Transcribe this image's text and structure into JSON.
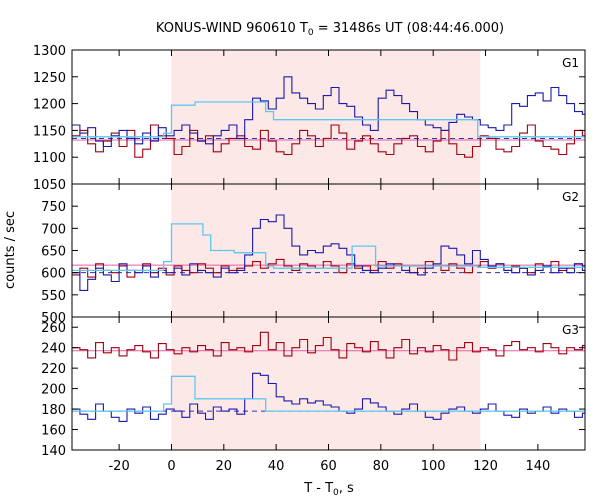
{
  "chart_data": {
    "type": "line",
    "title": "KONUS-WIND 960610 T",
    "title_sub": "0",
    "title_rest": " = 31486s UT (08:44:46.000)",
    "xlabel": "T - T",
    "xlabel_sub": "0",
    "xlabel_rest": ", s",
    "ylabel": "counts / sec",
    "xlim": [
      -38,
      158
    ],
    "xticks": [
      -20,
      0,
      20,
      40,
      60,
      80,
      100,
      120,
      140
    ],
    "xtick_labels": [
      "-20",
      "0",
      "20",
      "40",
      "60",
      "80",
      "100",
      "120",
      "140"
    ],
    "shaded_interval": [
      0,
      118
    ],
    "colors": {
      "shade": "#fde8e8",
      "blue_series": "#1a1aa8",
      "red_series": "#a00010",
      "fit": "#5bc8f0",
      "background_level": "#3030b0",
      "red_level": "#e060a0"
    },
    "bin_width": 3,
    "panels": [
      {
        "label": "G1",
        "ylim": [
          1050,
          1300
        ],
        "yticks": [
          1050,
          1100,
          1150,
          1200,
          1250,
          1300
        ],
        "ytick_labels": [
          "1050",
          "1100",
          "1150",
          "1200",
          "1250",
          "1300"
        ],
        "background_level": 1135,
        "red_level": 1132,
        "blue_y": [
          1160,
          1145,
          1155,
          1130,
          1120,
          1140,
          1150,
          1135,
          1125,
          1145,
          1130,
          1155,
          1140,
          1150,
          1160,
          1145,
          1130,
          1125,
          1140,
          1150,
          1160,
          1135,
          1170,
          1210,
          1205,
          1190,
          1210,
          1250,
          1220,
          1210,
          1200,
          1190,
          1215,
          1230,
          1200,
          1195,
          1175,
          1160,
          1150,
          1210,
          1225,
          1215,
          1200,
          1185,
          1170,
          1160,
          1155,
          1150,
          1165,
          1180,
          1175,
          1170,
          1160,
          1155,
          1150,
          1160,
          1200,
          1195,
          1215,
          1220,
          1205,
          1230,
          1215,
          1200,
          1185,
          1180,
          1160,
          1150,
          1165,
          1155,
          1160,
          1150,
          1155,
          1140,
          1150,
          1145,
          1135,
          1140,
          1160,
          1145,
          1150,
          1130,
          1160,
          1140,
          1150,
          1155,
          1145,
          1130,
          1150,
          1140,
          1155,
          1145,
          1150,
          1130,
          1160,
          1150,
          1140,
          1155,
          1150,
          1145,
          1130,
          1140,
          1150
        ],
        "red_y": [
          1140,
          1150,
          1125,
          1110,
          1130,
          1145,
          1120,
          1150,
          1100,
          1115,
          1160,
          1140,
          1135,
          1105,
          1120,
          1150,
          1130,
          1140,
          1110,
          1125,
          1135,
          1140,
          1120,
          1115,
          1150,
          1130,
          1110,
          1105,
          1125,
          1150,
          1140,
          1120,
          1135,
          1160,
          1145,
          1115,
          1130,
          1140,
          1125,
          1110,
          1105,
          1125,
          1135,
          1140,
          1120,
          1110,
          1130,
          1150,
          1125,
          1105,
          1100,
          1120,
          1140,
          1135,
          1115,
          1110,
          1120,
          1145,
          1160,
          1130,
          1120,
          1115,
          1105,
          1125,
          1150,
          1140,
          1130,
          1115,
          1125,
          1140,
          1135,
          1120,
          1110,
          1105,
          1125,
          1130,
          1150,
          1140,
          1115,
          1130,
          1155,
          1140,
          1120,
          1135,
          1145,
          1130,
          1150,
          1140,
          1135,
          1120,
          1130,
          1150,
          1145,
          1125,
          1135,
          1140,
          1130,
          1145,
          1120,
          1135,
          1150,
          1140,
          1130,
          1125,
          1150
        ],
        "fit_steps": [
          [
            -38,
            -3,
            1138
          ],
          [
            -3,
            0,
            1145
          ],
          [
            0,
            9,
            1197
          ],
          [
            9,
            36,
            1203
          ],
          [
            36,
            39,
            1185
          ],
          [
            39,
            117,
            1170
          ],
          [
            117,
            158,
            1138
          ]
        ]
      },
      {
        "label": "G2",
        "ylim": [
          500,
          800
        ],
        "yticks": [
          500,
          550,
          600,
          650,
          700,
          750
        ],
        "ytick_labels": [
          "500",
          "550",
          "600",
          "650",
          "700",
          "750"
        ],
        "background_level": 600,
        "red_level": 617,
        "blue_y": [
          600,
          560,
          585,
          610,
          595,
          580,
          620,
          605,
          600,
          615,
          590,
          605,
          600,
          610,
          595,
          620,
          605,
          600,
          590,
          610,
          600,
          605,
          640,
          700,
          720,
          715,
          730,
          700,
          660,
          640,
          650,
          645,
          660,
          665,
          655,
          640,
          615,
          605,
          600,
          610,
          620,
          615,
          605,
          600,
          595,
          610,
          620,
          660,
          655,
          640,
          620,
          650,
          630,
          615,
          620,
          605,
          600,
          610,
          595,
          605,
          615,
          600,
          610,
          600,
          620,
          605,
          600,
          595,
          610,
          605,
          600,
          615,
          600,
          610,
          605,
          595,
          610,
          600,
          605,
          615,
          600,
          610,
          605,
          600,
          615,
          600,
          605,
          595,
          610,
          600,
          605,
          600,
          615,
          610,
          600,
          605,
          600,
          610,
          605,
          600,
          595,
          610,
          600
        ],
        "red_y": [
          595,
          610,
          590,
          620,
          605,
          600,
          615,
          590,
          605,
          620,
          600,
          610,
          595,
          615,
          605,
          600,
          620,
          610,
          600,
          615,
          605,
          610,
          615,
          625,
          610,
          620,
          630,
          615,
          605,
          620,
          615,
          610,
          625,
          615,
          600,
          620,
          610,
          615,
          605,
          625,
          610,
          620,
          615,
          600,
          610,
          625,
          615,
          605,
          620,
          610,
          600,
          615,
          625,
          610,
          620,
          605,
          615,
          610,
          600,
          620,
          615,
          625,
          605,
          610,
          620,
          615,
          600,
          610,
          625,
          615,
          605,
          620,
          610,
          615,
          600,
          620,
          610,
          625,
          615,
          605,
          620,
          610,
          615,
          605,
          620,
          600,
          610,
          615,
          605,
          620,
          625,
          610,
          600,
          615,
          620,
          610,
          605,
          615,
          620,
          610,
          625
        ],
        "fit_steps": [
          [
            -38,
            -3,
            605
          ],
          [
            -3,
            0,
            625
          ],
          [
            0,
            9,
            710
          ],
          [
            9,
            12,
            710
          ],
          [
            12,
            15,
            685
          ],
          [
            15,
            24,
            650
          ],
          [
            24,
            36,
            645
          ],
          [
            36,
            39,
            615
          ],
          [
            39,
            69,
            610
          ],
          [
            69,
            78,
            660
          ],
          [
            78,
            117,
            615
          ],
          [
            117,
            158,
            612
          ]
        ]
      },
      {
        "label": "G3",
        "ylim": [
          140,
          270
        ],
        "yticks": [
          140,
          160,
          180,
          200,
          220,
          240,
          260
        ],
        "ytick_labels": [
          "140",
          "160",
          "180",
          "200",
          "220",
          "240",
          "260"
        ],
        "background_level": 178,
        "red_level": 237,
        "blue_y": [
          180,
          175,
          170,
          185,
          178,
          172,
          168,
          180,
          176,
          182,
          170,
          175,
          180,
          178,
          172,
          185,
          176,
          170,
          182,
          178,
          180,
          175,
          190,
          215,
          213,
          205,
          192,
          188,
          185,
          190,
          186,
          188,
          184,
          182,
          178,
          176,
          180,
          190,
          186,
          182,
          178,
          175,
          180,
          185,
          178,
          172,
          170,
          176,
          180,
          182,
          178,
          176,
          180,
          185,
          178,
          174,
          172,
          180,
          176,
          178,
          182,
          176,
          180,
          178,
          172,
          176,
          180,
          175,
          172,
          178,
          176,
          180,
          182,
          176,
          178,
          180,
          175,
          178,
          182,
          176,
          174,
          180,
          178,
          176,
          182,
          178,
          175,
          180,
          178,
          176,
          180,
          182,
          178,
          175,
          180,
          176,
          178,
          182,
          180,
          176,
          178,
          175,
          180
        ],
        "red_y": [
          240,
          238,
          230,
          245,
          235,
          240,
          232,
          238,
          242,
          236,
          230,
          244,
          238,
          234,
          240,
          236,
          242,
          238,
          232,
          245,
          238,
          240,
          236,
          242,
          255,
          238,
          245,
          232,
          240,
          248,
          235,
          242,
          250,
          238,
          230,
          244,
          240,
          236,
          246,
          238,
          230,
          240,
          248,
          234,
          240,
          236,
          242,
          238,
          228,
          240,
          245,
          236,
          240,
          238,
          232,
          242,
          246,
          238,
          240,
          236,
          244,
          240,
          234,
          240,
          238,
          242,
          236,
          240,
          232,
          244,
          238,
          240,
          236,
          242,
          238,
          228,
          240,
          244,
          236,
          240,
          242,
          238,
          234,
          240,
          236,
          244,
          240,
          238,
          236,
          242,
          240,
          238,
          236,
          244,
          240,
          238,
          236,
          242,
          238,
          240,
          236,
          244,
          240
        ],
        "fit_steps": [
          [
            -38,
            -3,
            178
          ],
          [
            -3,
            0,
            185
          ],
          [
            0,
            9,
            212
          ],
          [
            9,
            36,
            190
          ],
          [
            36,
            158,
            178
          ]
        ]
      }
    ]
  }
}
